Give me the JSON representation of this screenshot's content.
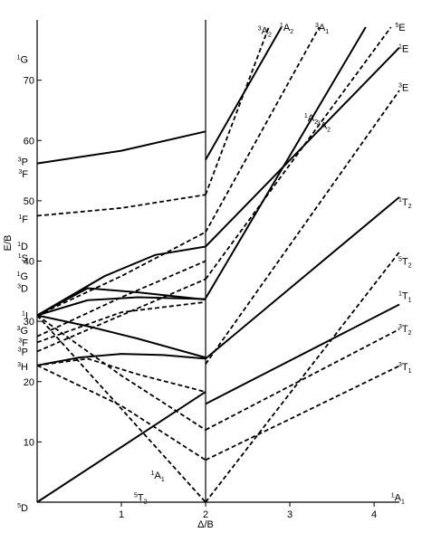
{
  "chart_data": {
    "type": "line",
    "title": "",
    "xlabel": "Δ/B",
    "ylabel": "E/B",
    "xlim": [
      0,
      4.3
    ],
    "ylim": [
      0,
      80
    ],
    "x_ticks": [
      1,
      2,
      3,
      4
    ],
    "y_ticks": [
      10,
      20,
      30,
      40,
      50,
      60,
      70
    ],
    "spin_crossover_x": 2,
    "grid": false,
    "free_ion_terms": [
      {
        "mult": "1",
        "sym": "G",
        "y": 73.5
      },
      {
        "mult": "3",
        "sym": "P",
        "y": 56.5
      },
      {
        "mult": "3",
        "sym": "F",
        "y": 54.5
      },
      {
        "mult": "1",
        "sym": "F",
        "y": 47
      },
      {
        "mult": "1",
        "sym": "D",
        "y": 42.5
      },
      {
        "mult": "1",
        "sym": "S",
        "y": 40.5
      },
      {
        "mult": "1",
        "sym": "G",
        "y": 37.5
      },
      {
        "mult": "3",
        "sym": "D",
        "y": 35.5
      },
      {
        "mult": "1",
        "sym": "I",
        "y": 31
      },
      {
        "mult": "3",
        "sym": "G",
        "y": 28.5
      },
      {
        "mult": "3",
        "sym": "F",
        "y": 26.5
      },
      {
        "mult": "3",
        "sym": "P",
        "y": 25
      },
      {
        "mult": "3",
        "sym": "H",
        "y": 22.5
      },
      {
        "mult": "5",
        "sym": "D",
        "y": 0
      }
    ],
    "state_labels": [
      {
        "mult": "3",
        "sym": "A",
        "sub": "2",
        "x": 2.62,
        "y": 78.3
      },
      {
        "mult": "1",
        "sym": "A",
        "sub": "2",
        "x": 2.88,
        "y": 78.8
      },
      {
        "mult": "3",
        "sym": "A",
        "sub": "1",
        "x": 3.3,
        "y": 78.8
      },
      {
        "mult": "5",
        "sym": "E",
        "x": 4.25,
        "y": 78.8
      },
      {
        "mult": "1",
        "sym": "E",
        "x": 4.38,
        "y": 75.3
      },
      {
        "mult": "3",
        "sym": "E",
        "x": 4.38,
        "y": 68.8
      },
      {
        "mult": "1",
        "sym": "A",
        "sub": "2",
        "x": 3.17,
        "y": 63.8
      },
      {
        "mult": "3",
        "sym": "A",
        "sub": "2",
        "x": 3.32,
        "y": 62.5
      },
      {
        "mult": "1",
        "sym": "T",
        "sub": "2",
        "x": 4.38,
        "y": 49.8
      },
      {
        "mult": "5",
        "sym": "T",
        "sub": "2",
        "x": 4.38,
        "y": 40
      },
      {
        "mult": "1",
        "sym": "T",
        "sub": "1",
        "x": 4.38,
        "y": 34.3
      },
      {
        "mult": "3",
        "sym": "T",
        "sub": "2",
        "x": 4.38,
        "y": 28.8
      },
      {
        "mult": "3",
        "sym": "T",
        "sub": "1",
        "x": 4.38,
        "y": 22.5
      },
      {
        "mult": "1",
        "sym": "A",
        "sub": "1",
        "x": 1.35,
        "y": 4.5
      },
      {
        "mult": "5",
        "sym": "T",
        "sub": "2",
        "x": 1.15,
        "y": 0.8
      },
      {
        "mult": "1",
        "sym": "A",
        "sub": "1",
        "x": 4.2,
        "y": 0.8
      }
    ],
    "series": [
      {
        "style": "solid",
        "points": [
          [
            0,
            0
          ],
          [
            2,
            18.3
          ]
        ]
      },
      {
        "style": "solid",
        "points": [
          [
            2,
            16.3
          ],
          [
            4.3,
            32.8
          ]
        ]
      },
      {
        "style": "solid",
        "points": [
          [
            0,
            22.7
          ],
          [
            0.5,
            24
          ],
          [
            1,
            24.6
          ],
          [
            1.5,
            24.4
          ],
          [
            2,
            23.8
          ]
        ]
      },
      {
        "style": "solid",
        "points": [
          [
            2,
            23.8
          ],
          [
            4.3,
            50.6
          ]
        ]
      },
      {
        "style": "solid",
        "points": [
          [
            0,
            31
          ],
          [
            0.6,
            29.2
          ],
          [
            1.2,
            27.1
          ],
          [
            2,
            24
          ]
        ]
      },
      {
        "style": "solid",
        "points": [
          [
            0,
            31
          ],
          [
            0.6,
            33.5
          ],
          [
            1.2,
            34
          ],
          [
            2,
            33.7
          ]
        ]
      },
      {
        "style": "solid",
        "points": [
          [
            0,
            31
          ],
          [
            0.6,
            35.5
          ],
          [
            1.2,
            34.8
          ],
          [
            2,
            33.6
          ]
        ]
      },
      {
        "style": "solid",
        "points": [
          [
            2,
            33.8
          ],
          [
            3.9,
            78.8
          ]
        ]
      },
      {
        "style": "solid",
        "points": [
          [
            0,
            31
          ],
          [
            0.8,
            37.5
          ],
          [
            1.4,
            41
          ],
          [
            2,
            42.4
          ]
        ]
      },
      {
        "style": "solid",
        "points": [
          [
            2,
            42.4
          ],
          [
            4.3,
            75.4
          ]
        ]
      },
      {
        "style": "solid",
        "points": [
          [
            0,
            56.2
          ],
          [
            1,
            58.3
          ],
          [
            2,
            61.5
          ]
        ]
      },
      {
        "style": "solid",
        "points": [
          [
            2,
            56.8
          ],
          [
            2.9,
            78.8
          ]
        ]
      },
      {
        "style": "dashed",
        "points": [
          [
            0,
            47.5
          ],
          [
            1,
            48.8
          ],
          [
            2,
            51
          ]
        ]
      },
      {
        "style": "dashed",
        "points": [
          [
            0,
            31
          ],
          [
            2,
            0
          ]
        ]
      },
      {
        "style": "dashed",
        "points": [
          [
            0,
            31
          ],
          [
            1,
            21
          ],
          [
            2,
            12
          ]
        ]
      },
      {
        "style": "dashed",
        "points": [
          [
            0,
            22.7
          ],
          [
            1,
            16
          ],
          [
            2,
            7
          ]
        ]
      },
      {
        "style": "dashed",
        "points": [
          [
            0,
            22.7
          ],
          [
            0.6,
            23.8
          ],
          [
            1.2,
            21.2
          ],
          [
            2,
            18.3
          ]
        ]
      },
      {
        "style": "dashed",
        "points": [
          [
            0,
            26.5
          ],
          [
            1,
            31.5
          ],
          [
            2,
            33.2
          ]
        ]
      },
      {
        "style": "dashed",
        "points": [
          [
            0,
            25
          ],
          [
            1,
            31
          ],
          [
            2,
            37
          ]
        ]
      },
      {
        "style": "dashed",
        "points": [
          [
            0,
            27.5
          ],
          [
            1,
            34
          ],
          [
            2,
            40
          ]
        ]
      },
      {
        "style": "dashed",
        "points": [
          [
            0,
            31
          ],
          [
            1,
            37.5
          ],
          [
            2,
            44.8
          ]
        ]
      },
      {
        "style": "dashed",
        "points": [
          [
            2,
            0
          ],
          [
            4.3,
            41.5
          ]
        ]
      },
      {
        "style": "dashed",
        "points": [
          [
            2,
            7
          ],
          [
            4.3,
            22.6
          ]
        ]
      },
      {
        "style": "dashed",
        "points": [
          [
            2,
            12
          ],
          [
            4.3,
            28.7
          ]
        ]
      },
      {
        "style": "dashed",
        "points": [
          [
            2,
            22.9
          ],
          [
            4.3,
            68.3
          ]
        ]
      },
      {
        "style": "dashed",
        "points": [
          [
            2,
            37
          ],
          [
            4.2,
            78.8
          ]
        ]
      },
      {
        "style": "dashed",
        "points": [
          [
            2,
            44.8
          ],
          [
            3.35,
            78.8
          ]
        ]
      },
      {
        "style": "dashed",
        "points": [
          [
            2,
            51
          ],
          [
            2.75,
            78.8
          ]
        ]
      }
    ]
  }
}
